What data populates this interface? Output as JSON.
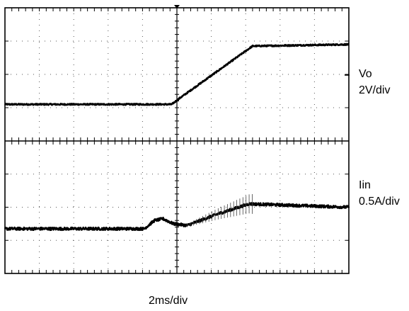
{
  "chart_data": {
    "type": "line",
    "title": "",
    "xlabel": "2ms/div",
    "x_divisions": 10,
    "grid": true,
    "line_color": "#000000",
    "background_color": "#ffffff",
    "x_unit": "div",
    "traces": [
      {
        "label_name": "Vo",
        "label_scale": "2V/div",
        "y_unit": "div",
        "y_divisions": 4,
        "noise": 0.02,
        "points": [
          [
            0,
            1.1
          ],
          [
            4.85,
            1.1
          ],
          [
            5.1,
            1.3
          ],
          [
            7.2,
            2.85
          ],
          [
            10,
            2.9
          ]
        ]
      },
      {
        "label_name": "Iin",
        "label_scale": "0.5A/div",
        "y_unit": "div",
        "y_divisions": 4,
        "noise": 0.04,
        "spike_x_range": [
          5.3,
          7.2
        ],
        "points": [
          [
            0,
            1.35
          ],
          [
            4.05,
            1.35
          ],
          [
            4.35,
            1.6
          ],
          [
            4.6,
            1.65
          ],
          [
            4.9,
            1.5
          ],
          [
            5.3,
            1.45
          ],
          [
            6.2,
            1.8
          ],
          [
            7.1,
            2.1
          ],
          [
            10,
            2.0
          ]
        ]
      }
    ]
  }
}
